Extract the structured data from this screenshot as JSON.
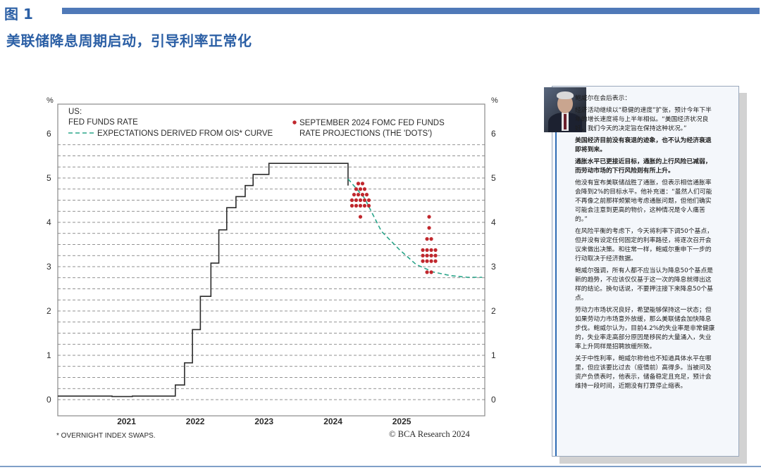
{
  "figure_label": "图 1",
  "subtitle": "美联储降息周期启动，引导利率正常化",
  "colors": {
    "brand_blue": "#2b5fa5",
    "bar_blue": "#4f79b8",
    "step_line": "#2b2b2b",
    "ois_line": "#2aa58a",
    "dots": "#c0272d"
  },
  "chart_data": {
    "type": "line",
    "region_label": "US:",
    "y_unit": "%",
    "ylim": [
      0,
      6
    ],
    "y_ticks": [
      "0",
      "1",
      "2",
      "3",
      "4",
      "5",
      "6"
    ],
    "x_ticks": [
      "2021",
      "2022",
      "2023",
      "2024",
      "2025"
    ],
    "legend": {
      "fed_funds_rate": "FED FUNDS RATE",
      "ois_expectations": "EXPECTATIONS DERIVED FROM OIS* CURVE",
      "dots_line1": "SEPTEMBER 2024 FOMC FED FUNDS",
      "dots_line2": "RATE PROJECTIONS (THE 'DOTS')"
    },
    "series": [
      {
        "name": "FED FUNDS RATE",
        "style": "step",
        "points": [
          [
            "2020-07-01",
            0.08
          ],
          [
            "2021-01-01",
            0.08
          ],
          [
            "2021-04-15",
            0.07
          ],
          [
            "2021-08-01",
            0.08
          ],
          [
            "2022-03-17",
            0.33
          ],
          [
            "2022-05-05",
            0.83
          ],
          [
            "2022-06-16",
            1.58
          ],
          [
            "2022-07-28",
            2.33
          ],
          [
            "2022-09-22",
            3.08
          ],
          [
            "2022-11-03",
            3.83
          ],
          [
            "2022-12-15",
            4.33
          ],
          [
            "2023-02-02",
            4.58
          ],
          [
            "2023-03-23",
            4.83
          ],
          [
            "2023-05-04",
            5.08
          ],
          [
            "2023-07-27",
            5.33
          ],
          [
            "2024-09-19",
            4.83
          ]
        ]
      },
      {
        "name": "EXPECTATIONS DERIVED FROM OIS* CURVE",
        "style": "dashed",
        "points": [
          [
            "2024-09-19",
            4.98
          ],
          [
            "2024-12-15",
            4.55
          ],
          [
            "2025-03-15",
            3.8
          ],
          [
            "2025-06-15",
            3.4
          ],
          [
            "2025-09-15",
            3.05
          ],
          [
            "2025-12-15",
            2.88
          ],
          [
            "2026-03-15",
            2.8
          ],
          [
            "2026-06-15",
            2.76
          ],
          [
            "2026-09-01",
            2.76
          ]
        ]
      },
      {
        "name": "SEPTEMBER 2024 FOMC FED FUNDS RATE PROJECTIONS (THE 'DOTS')",
        "style": "dots",
        "columns": [
          {
            "x": "2024-12-31",
            "levels": [
              [
                4.875,
                1
              ],
              [
                4.625,
                1
              ],
              [
                4.375,
                1
              ],
              [
                4.125,
                1
              ]
            ],
            "counts_hint": [
              [
                4.875,
                2
              ],
              [
                4.75,
                3
              ],
              [
                4.625,
                4
              ],
              [
                4.5,
                5
              ],
              [
                4.375,
                5
              ],
              [
                4.125,
                1
              ]
            ]
          },
          {
            "x": "2025-12-31",
            "counts_hint": [
              [
                4.125,
                1
              ],
              [
                3.875,
                1
              ],
              [
                3.625,
                2
              ],
              [
                3.375,
                4
              ],
              [
                3.25,
                4
              ],
              [
                3.125,
                4
              ],
              [
                2.875,
                2
              ]
            ]
          }
        ]
      }
    ],
    "footnote": "* OVERNIGHT INDEX SWAPS.",
    "source": "© BCA Research 2024"
  },
  "panel": {
    "intro": "鲍威尔在会后表示：",
    "paragraphs": [
      {
        "text": "经济活动继续以“稳健的速度”扩张，预计今年下半年的增长速度将与上半年相似。“美国经济状况良好，我们今天的决定旨在保持这种状况。”",
        "bold": false
      },
      {
        "text": "美国经济目前没有衰退的迹象，也不认为经济衰退即将到来。",
        "bold": true
      },
      {
        "text": "通胀水平已更接近目标，通胀的上行风险已减弱，而劳动市场的下行风险则有所上升。",
        "bold": true
      },
      {
        "text": "他没有宣布美联储战胜了通胀，但表示相信通胀率会降到2%的目标水平。他补充道：“虽然人们可能不再像之前那样频繁地考虑通胀问题，但他们确实可能会注意到更高的物价，这种情况是令人痛苦的。”",
        "bold": false
      },
      {
        "text": "在风险平衡的考虑下，今天将利率下调50个基点，但并没有设定任何固定的利率路径，将逐次召开会议来做出决策。和往常一样，鲍威尔重申下一步的行动取决于经济数据。",
        "bold": false
      },
      {
        "text": "鲍威尔强调，所有人都不应当认为降息50个基点是新的趋势，不应该仅仅基于这一次的降息就得出这样的结论。换句话说，不要押注接下来降息50个基点。",
        "bold": false
      },
      {
        "text": "劳动力市场状况良好，希望能够保持这一状态；但如果劳动力市场意外放缓，那么美联储会加快降息步伐。鲍威尔认为，目前4.2%的失业率是非常健康的，失业率走高部分原因是移民的大量涌入，失业率上升同样是招聘放缓所致。",
        "bold": false
      },
      {
        "text": "关于中性利率，鲍威尔称他也不知道具体水平在哪里，但应该要比过去（疫情前）高得多。当被问及资产负债表时，他表示，储备稳定且充足，预计会维持一段时间，近期没有打算停止缩表。",
        "bold": false
      }
    ]
  }
}
